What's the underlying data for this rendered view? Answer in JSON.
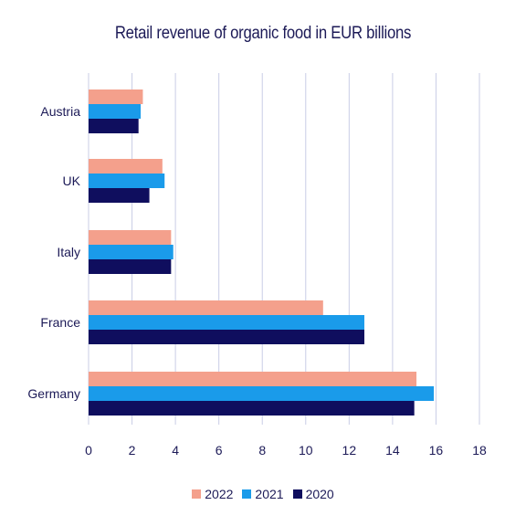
{
  "chart_data": {
    "type": "bar",
    "orientation": "horizontal",
    "title": "Retail revenue of organic food in EUR billions",
    "categories": [
      "Austria",
      "UK",
      "Italy",
      "France",
      "Germany"
    ],
    "series": [
      {
        "name": "2022",
        "color": "#f4a08c",
        "values": [
          2.5,
          3.4,
          3.8,
          10.8,
          15.1
        ]
      },
      {
        "name": "2021",
        "color": "#1a9bea",
        "values": [
          2.4,
          3.5,
          3.9,
          12.7,
          15.9
        ]
      },
      {
        "name": "2020",
        "color": "#0f0e5e",
        "values": [
          2.3,
          2.8,
          3.8,
          12.7,
          15.0
        ]
      }
    ],
    "xlim": [
      0,
      18
    ],
    "xticks": [
      "0",
      "2",
      "4",
      "6",
      "8",
      "10",
      "12",
      "14",
      "16",
      "18"
    ],
    "grid": "vertical",
    "legend_position": "bottom",
    "xlabel": "",
    "ylabel": ""
  }
}
